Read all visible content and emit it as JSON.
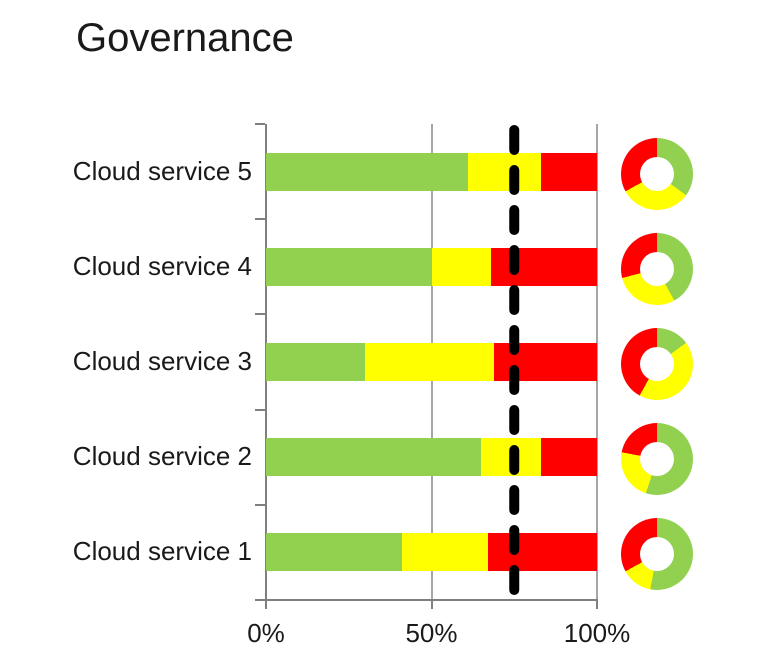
{
  "colors": {
    "green": "#92D050",
    "yellow": "#FFFF00",
    "red": "#FF0000",
    "target_line": "#000000",
    "gridline": "#A6A6A6",
    "axis": "#7F7F7F",
    "text": "#1A1A1A"
  },
  "x_axis": {
    "tick_labels": [
      "0%",
      "50%",
      "100%"
    ],
    "tick_values": [
      0,
      50,
      100
    ]
  },
  "chart_data": {
    "type": "bar",
    "subtype": "horizontal_stacked_100pct_with_donut_rings",
    "title": "Governance",
    "categories": [
      "Cloud service 5",
      "Cloud service 4",
      "Cloud service 3",
      "Cloud service 2",
      "Cloud service 1"
    ],
    "category_order": "top_to_bottom",
    "x_range": [
      0,
      100
    ],
    "x_tick_labels": [
      "0%",
      "50%",
      "100%"
    ],
    "target_line_pct": 75,
    "legend": "none",
    "grid": "vertical_gridlines_at_ticks",
    "series": [
      {
        "name": "green",
        "color": "#92D050",
        "values": [
          61,
          50,
          30,
          65,
          41
        ]
      },
      {
        "name": "yellow",
        "color": "#FFFF00",
        "values": [
          22,
          18,
          39,
          18,
          26
        ]
      },
      {
        "name": "red",
        "color": "#FF0000",
        "values": [
          17,
          32,
          31,
          17,
          33
        ]
      }
    ],
    "donuts": {
      "position": "right_of_each_bar",
      "series": [
        {
          "name": "green",
          "color": "#92D050",
          "values": [
            35,
            42,
            15,
            55,
            53
          ]
        },
        {
          "name": "yellow",
          "color": "#FFFF00",
          "values": [
            32,
            29,
            43,
            23,
            14
          ]
        },
        {
          "name": "red",
          "color": "#FF0000",
          "values": [
            33,
            29,
            42,
            22,
            33
          ]
        }
      ]
    }
  }
}
